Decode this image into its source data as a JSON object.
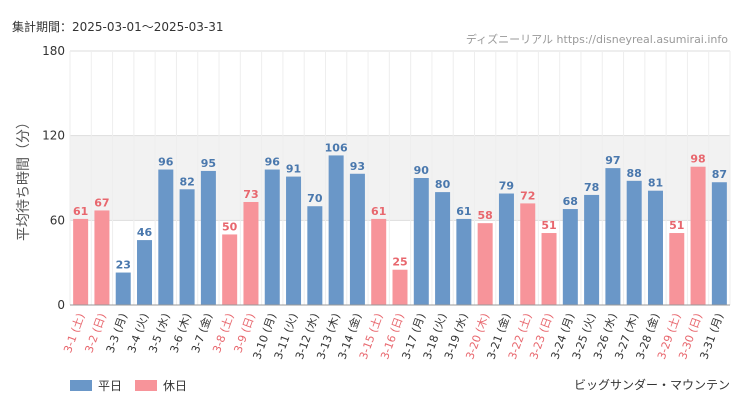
{
  "header": {
    "period_label": "集計期間：2025-03-01〜2025-03-31",
    "source": "ディズニーリアル https://disneyreal.asumirai.info"
  },
  "footer": {
    "attraction": "ビッグサンダー・マウンテン"
  },
  "colors": {
    "weekday": "#6a97c8",
    "holiday": "#f7949a",
    "weekday_text": "#4a78ad",
    "holiday_text": "#e8676e",
    "band": "#f2f2f2",
    "grid": "#dddddd"
  },
  "chart_data": {
    "type": "bar",
    "ylabel": "平均待ち時間（分）",
    "ylim": [
      0,
      180
    ],
    "yticks": [
      0,
      60,
      120,
      180
    ],
    "band": [
      60,
      120
    ],
    "legend": {
      "position": "bottom-left",
      "entries": [
        "平日",
        "休日"
      ]
    },
    "categories": [
      "3-1 (土)",
      "3-2 (日)",
      "3-3 (月)",
      "3-4 (火)",
      "3-5 (水)",
      "3-6 (木)",
      "3-7 (金)",
      "3-8 (土)",
      "3-9 (日)",
      "3-10 (月)",
      "3-11 (火)",
      "3-12 (水)",
      "3-13 (木)",
      "3-14 (金)",
      "3-15 (土)",
      "3-16 (日)",
      "3-17 (月)",
      "3-18 (火)",
      "3-19 (水)",
      "3-20 (木)",
      "3-21 (金)",
      "3-22 (土)",
      "3-23 (日)",
      "3-24 (月)",
      "3-25 (火)",
      "3-26 (水)",
      "3-27 (木)",
      "3-28 (金)",
      "3-29 (土)",
      "3-30 (日)",
      "3-31 (月)"
    ],
    "values": [
      61,
      67,
      23,
      46,
      96,
      82,
      95,
      50,
      73,
      96,
      91,
      70,
      106,
      93,
      61,
      25,
      90,
      80,
      61,
      58,
      79,
      72,
      51,
      68,
      78,
      97,
      88,
      81,
      51,
      98,
      87
    ],
    "day_type": [
      "休日",
      "休日",
      "平日",
      "平日",
      "平日",
      "平日",
      "平日",
      "休日",
      "休日",
      "平日",
      "平日",
      "平日",
      "平日",
      "平日",
      "休日",
      "休日",
      "平日",
      "平日",
      "平日",
      "休日",
      "平日",
      "休日",
      "休日",
      "平日",
      "平日",
      "平日",
      "平日",
      "平日",
      "休日",
      "休日",
      "平日"
    ]
  }
}
